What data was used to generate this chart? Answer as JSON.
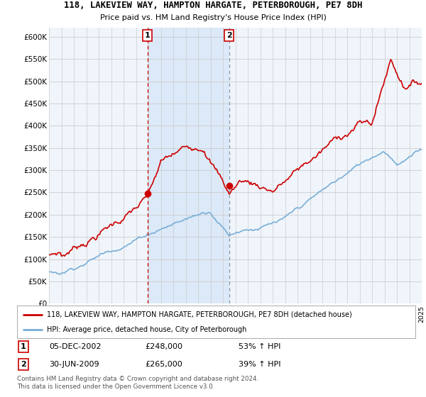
{
  "title1": "118, LAKEVIEW WAY, HAMPTON HARGATE, PETERBOROUGH, PE7 8DH",
  "title2": "Price paid vs. HM Land Registry's House Price Index (HPI)",
  "ylabel_ticks": [
    "£0",
    "£50K",
    "£100K",
    "£150K",
    "£200K",
    "£250K",
    "£300K",
    "£350K",
    "£400K",
    "£450K",
    "£500K",
    "£550K",
    "£600K"
  ],
  "ylim": [
    0,
    620000
  ],
  "ytick_vals": [
    0,
    50000,
    100000,
    150000,
    200000,
    250000,
    300000,
    350000,
    400000,
    450000,
    500000,
    550000,
    600000
  ],
  "sale1_year": 2002.92,
  "sale1_price": 248000,
  "sale1_label": "1",
  "sale1_date": "05-DEC-2002",
  "sale1_pct": "53% ↑ HPI",
  "sale2_year": 2009.5,
  "sale2_price": 265000,
  "sale2_label": "2",
  "sale2_date": "30-JUN-2009",
  "sale2_pct": "39% ↑ HPI",
  "background_color": "#f0f5fb",
  "shaded_color": "#dce9f8",
  "red_line_color": "#cc0000",
  "blue_line_color": "#7aaed6",
  "vline1_color": "#cc0000",
  "vline2_color": "#8899aa",
  "grid_color": "#cccccc",
  "legend_label1": "118, LAKEVIEW WAY, HAMPTON HARGATE, PETERBOROUGH, PE7 8DH (detached house)",
  "legend_label2": "HPI: Average price, detached house, City of Peterborough",
  "footer1": "Contains HM Land Registry data © Crown copyright and database right 2024.",
  "footer2": "This data is licensed under the Open Government Licence v3.0."
}
